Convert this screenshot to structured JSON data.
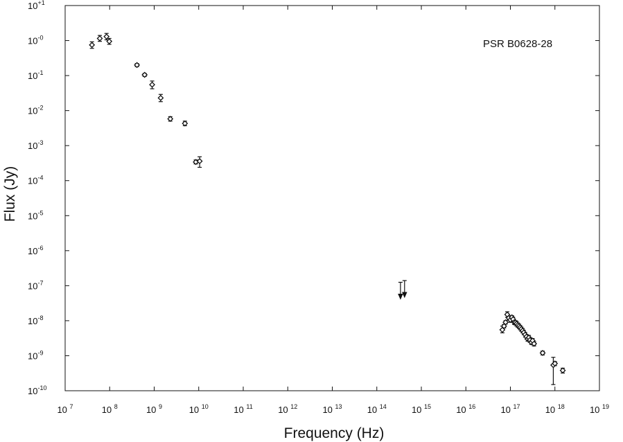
{
  "chart_data": {
    "type": "scatter",
    "title": "",
    "xlabel": "Frequency (Hz)",
    "ylabel": "Flux (Jy)",
    "xscale": "log",
    "yscale": "log",
    "xlim": [
      10000000.0,
      1e+19
    ],
    "ylim": [
      1e-10,
      10.0
    ],
    "grid": false,
    "annotation": "PSR B0628-28",
    "x_ticks": [
      {
        "base": "10",
        "exp": "7"
      },
      {
        "base": "10",
        "exp": "8"
      },
      {
        "base": "10",
        "exp": "9"
      },
      {
        "base": "10",
        "exp": "10"
      },
      {
        "base": "10",
        "exp": "11"
      },
      {
        "base": "10",
        "exp": "12"
      },
      {
        "base": "10",
        "exp": "13"
      },
      {
        "base": "10",
        "exp": "14"
      },
      {
        "base": "10",
        "exp": "15"
      },
      {
        "base": "10",
        "exp": "16"
      },
      {
        "base": "10",
        "exp": "17"
      },
      {
        "base": "10",
        "exp": "18"
      },
      {
        "base": "10",
        "exp": "19"
      }
    ],
    "y_ticks": [
      {
        "base": "10",
        "exp": "-10"
      },
      {
        "base": "10",
        "exp": "-9"
      },
      {
        "base": "10",
        "exp": "-8"
      },
      {
        "base": "10",
        "exp": "-7"
      },
      {
        "base": "10",
        "exp": "-6"
      },
      {
        "base": "10",
        "exp": "-5"
      },
      {
        "base": "10",
        "exp": "-4"
      },
      {
        "base": "10",
        "exp": "-3"
      },
      {
        "base": "10",
        "exp": "-2"
      },
      {
        "base": "10",
        "exp": "-1"
      },
      {
        "base": "10",
        "exp": "-0"
      },
      {
        "base": "10",
        "exp": "+1"
      }
    ],
    "points": [
      {
        "x": 40000000.0,
        "y": 0.75,
        "yerr_lo": 0.6,
        "yerr_hi": 0.92
      },
      {
        "x": 60000000.0,
        "y": 1.15,
        "yerr_lo": 0.95,
        "yerr_hi": 1.4
      },
      {
        "x": 85000000.0,
        "y": 1.3,
        "yerr_lo": 1.05,
        "yerr_hi": 1.6
      },
      {
        "x": 98000000.0,
        "y": 0.95,
        "yerr_lo": 0.78,
        "yerr_hi": 1.15
      },
      {
        "x": 410000000.0,
        "y": 0.2,
        "yerr_lo": 0.18,
        "yerr_hi": 0.22
      },
      {
        "x": 610000000.0,
        "y": 0.105,
        "yerr_lo": 0.095,
        "yerr_hi": 0.115
      },
      {
        "x": 900000000.0,
        "y": 0.055,
        "yerr_lo": 0.042,
        "yerr_hi": 0.07
      },
      {
        "x": 1400000000.0,
        "y": 0.023,
        "yerr_lo": 0.018,
        "yerr_hi": 0.029
      },
      {
        "x": 2300000000.0,
        "y": 0.0058,
        "yerr_lo": 0.005,
        "yerr_hi": 0.0067
      },
      {
        "x": 4900000000.0,
        "y": 0.0043,
        "yerr_lo": 0.0037,
        "yerr_hi": 0.005
      },
      {
        "x": 8600000000.0,
        "y": 0.00034,
        "yerr_lo": 0.0003,
        "yerr_hi": 0.00039
      },
      {
        "x": 10500000000.0,
        "y": 0.00036,
        "yerr_lo": 0.00024,
        "yerr_hi": 0.00048
      },
      {
        "x": 6.6e+16,
        "y": 5.5e-09,
        "yerr_lo": 4.5e-09,
        "yerr_hi": 7e-09
      },
      {
        "x": 7.2e+16,
        "y": 7e-09,
        "yerr_lo": 6.2e-09,
        "yerr_hi": 7.8e-09
      },
      {
        "x": 7.8e+16,
        "y": 9e-09,
        "yerr_lo": 8e-09,
        "yerr_hi": 1e-08
      },
      {
        "x": 8.5e+16,
        "y": 1.5e-08,
        "yerr_lo": 1.25e-08,
        "yerr_hi": 1.8e-08
      },
      {
        "x": 9.2e+16,
        "y": 1.2e-08,
        "yerr_lo": 1.05e-08,
        "yerr_hi": 1.35e-08
      },
      {
        "x": 1e+17,
        "y": 1.05e-08,
        "yerr_lo": 9e-09,
        "yerr_hi": 1.2e-08
      },
      {
        "x": 1.08e+17,
        "y": 1.25e-08,
        "yerr_lo": 1.1e-08,
        "yerr_hi": 1.4e-08
      },
      {
        "x": 1.15e+17,
        "y": 1.1e-08,
        "yerr_lo": 9.5e-09,
        "yerr_hi": 1.25e-08
      },
      {
        "x": 1.22e+17,
        "y": 9e-09,
        "yerr_lo": 7.8e-09,
        "yerr_hi": 1.02e-08
      },
      {
        "x": 1.3e+17,
        "y": 8.8e-09,
        "yerr_lo": 7.6e-09,
        "yerr_hi": 1e-08
      },
      {
        "x": 1.38e+17,
        "y": 8.2e-09,
        "yerr_lo": 7e-09,
        "yerr_hi": 9.5e-09
      },
      {
        "x": 1.47e+17,
        "y": 7.5e-09,
        "yerr_lo": 6.5e-09,
        "yerr_hi": 8.6e-09
      },
      {
        "x": 1.56e+17,
        "y": 7e-09,
        "yerr_lo": 6e-09,
        "yerr_hi": 8e-09
      },
      {
        "x": 1.66e+17,
        "y": 6.4e-09,
        "yerr_lo": 5.5e-09,
        "yerr_hi": 7.3e-09
      },
      {
        "x": 1.76e+17,
        "y": 5.8e-09,
        "yerr_lo": 5e-09,
        "yerr_hi": 6.6e-09
      },
      {
        "x": 1.88e+17,
        "y": 5.2e-09,
        "yerr_lo": 4.5e-09,
        "yerr_hi": 6e-09
      },
      {
        "x": 2e+17,
        "y": 4.6e-09,
        "yerr_lo": 4e-09,
        "yerr_hi": 5.3e-09
      },
      {
        "x": 2.15e+17,
        "y": 4e-09,
        "yerr_lo": 3.4e-09,
        "yerr_hi": 4.6e-09
      },
      {
        "x": 2.3e+17,
        "y": 3.5e-09,
        "yerr_lo": 3e-09,
        "yerr_hi": 4e-09
      },
      {
        "x": 2.45e+17,
        "y": 3e-09,
        "yerr_lo": 2.6e-09,
        "yerr_hi": 3.5e-09
      },
      {
        "x": 2.6e+17,
        "y": 3.3e-09,
        "yerr_lo": 2.8e-09,
        "yerr_hi": 3.8e-09
      },
      {
        "x": 2.75e+17,
        "y": 2.8e-09,
        "yerr_lo": 2.4e-09,
        "yerr_hi": 3.2e-09
      },
      {
        "x": 2.95e+17,
        "y": 2.4e-09,
        "yerr_lo": 2.1e-09,
        "yerr_hi": 2.8e-09
      },
      {
        "x": 3.15e+17,
        "y": 2.7e-09,
        "yerr_lo": 2.3e-09,
        "yerr_hi": 3.1e-09
      },
      {
        "x": 3.4e+17,
        "y": 2.2e-09,
        "yerr_lo": 1.9e-09,
        "yerr_hi": 2.5e-09
      },
      {
        "x": 5.3e+17,
        "y": 1.2e-09,
        "yerr_lo": 1.05e-09,
        "yerr_hi": 1.35e-09
      },
      {
        "x": 9.2e+17,
        "y": 5.4e-10,
        "yerr_lo": 1.5e-10,
        "yerr_hi": 9e-10
      },
      {
        "x": 1e+18,
        "y": 6e-10,
        "yerr_lo": 5.2e-10,
        "yerr_hi": 6.8e-10
      },
      {
        "x": 1.5e+18,
        "y": 3.8e-10,
        "yerr_lo": 3.2e-10,
        "yerr_hi": 4.4e-10
      }
    ],
    "upper_limits": [
      {
        "x": 340000000000000.0,
        "y": 1.25e-07
      },
      {
        "x": 420000000000000.0,
        "y": 1.4e-07
      }
    ]
  }
}
